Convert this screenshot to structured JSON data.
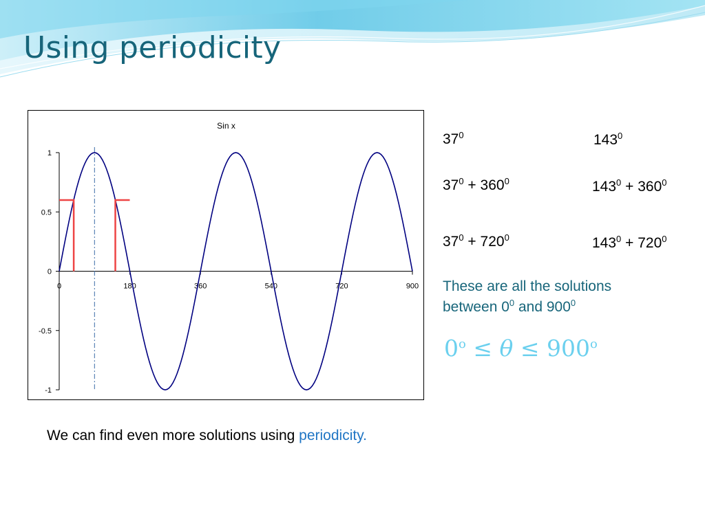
{
  "slide": {
    "title": "Using periodicity"
  },
  "solutions": {
    "left": [
      {
        "base": "37",
        "sup": "0",
        "add": "",
        "add_sup": ""
      },
      {
        "base": "37",
        "sup": "0",
        "add": " + 360",
        "add_sup": "0"
      },
      {
        "base": "37",
        "sup": "0",
        "add": " + 720",
        "add_sup": "0"
      }
    ],
    "right": [
      {
        "base": "143",
        "sup": "0",
        "add": "",
        "add_sup": ""
      },
      {
        "base": "143",
        "sup": "0",
        "add": " + 360",
        "add_sup": "0"
      },
      {
        "base": "143",
        "sup": "0",
        "add": " + 720",
        "add_sup": "0"
      }
    ]
  },
  "note": {
    "line1": "These are all the solutions",
    "line2_prefix": "between 0",
    "line2_sup1": "0",
    "line2_mid": " and 900",
    "line2_sup2": "0"
  },
  "inequality": {
    "left": "0",
    "left_sup": "o",
    "op1": " ≤ ",
    "var": "θ",
    "op2": " ≤ ",
    "right": "900",
    "right_sup": "o"
  },
  "footer": {
    "text": "We can find even more solutions using ",
    "highlight": "periodicity."
  },
  "colors": {
    "title": "#17657a",
    "curve": "#000080",
    "solution_marker": "#ee4444",
    "inequality": "#6bd0ee",
    "highlight": "#1f75c4"
  },
  "chart_data": {
    "type": "line",
    "title": "Sin x",
    "function": "sin(x), x in degrees",
    "x_ticks": [
      "0",
      "180",
      "360",
      "540",
      "720",
      "900"
    ],
    "y_ticks": [
      "1",
      "0.5",
      "0",
      "-0.5",
      "-1"
    ],
    "xlim": [
      0,
      900
    ],
    "ylim": [
      -1,
      1
    ],
    "series": [
      {
        "function": "sin",
        "x_start": 0,
        "x_end": 900,
        "x_step": 5
      }
    ],
    "markers": [
      {
        "x": 37,
        "y": 0.6
      },
      {
        "x": 143,
        "y": 0.6
      }
    ],
    "guide_line_x": 90
  }
}
